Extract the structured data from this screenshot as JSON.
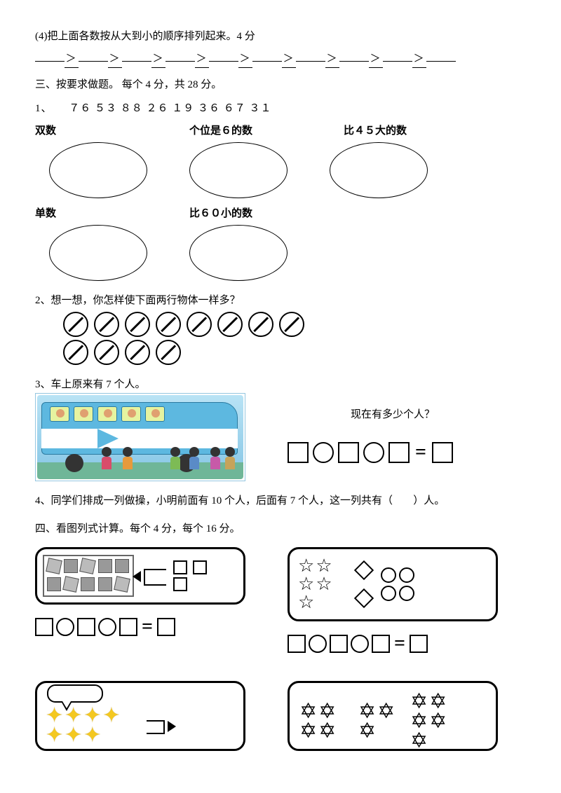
{
  "q_order": {
    "text": "(4)把上面各数按从大到小的顺序排列起来。4 分",
    "gt": "＞"
  },
  "section3": {
    "title": "三、按要求做题。 每个 4 分，共 28 分。",
    "q1_label": "1、",
    "numbers": "７６    ５３    ８８  ２６  １９    ３６    ６７  ３１",
    "labels": {
      "even": "双数",
      "ones6": "个位是６的数",
      "gt45": "比４５大的数",
      "odd": "单数",
      "lt60": "比６０小的数"
    }
  },
  "q2": {
    "text": "2、想一想，你怎样使下面两行物体一样多？",
    "row1": 8,
    "row2": 4
  },
  "q3": {
    "text": "3、车上原来有 7 个人。",
    "right": "现在有多少个人？"
  },
  "q4b": {
    "text_a": "4、同学们排成一列做操，小明前面有 10 个人，后面有 7 个人，这一列共有（",
    "text_b": "）人。"
  },
  "section4": {
    "title": "四、看图列式计算。每个 4 分，每个 16 分。"
  }
}
